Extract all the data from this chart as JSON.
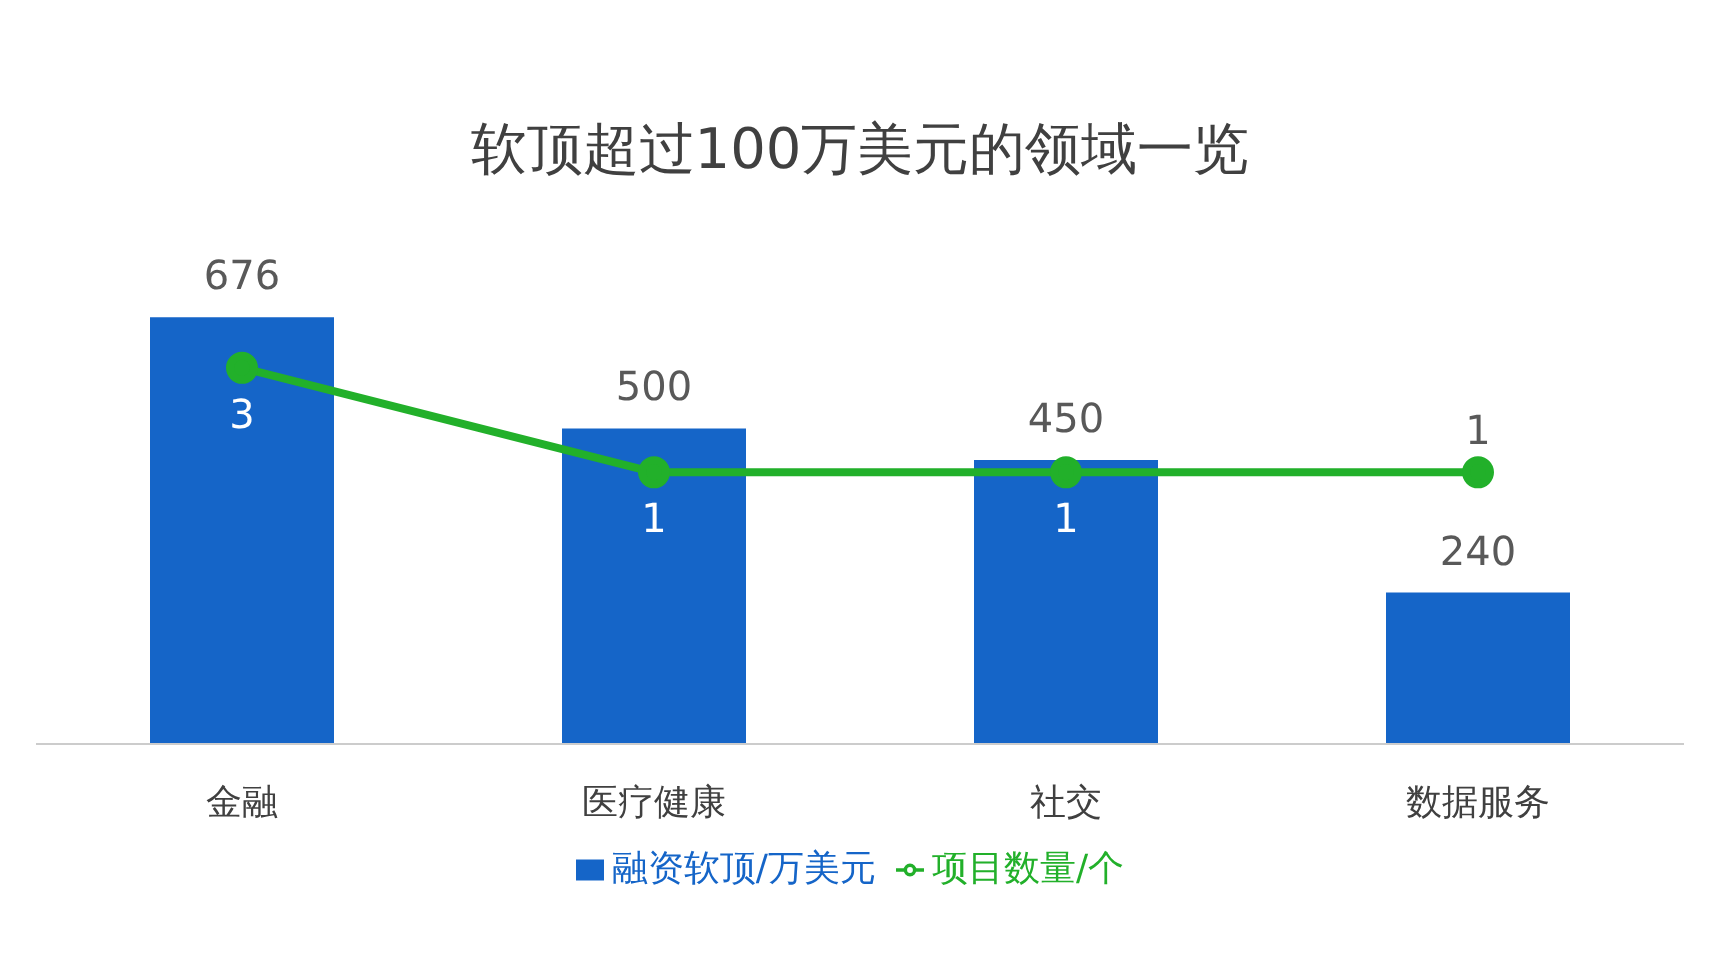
{
  "chart_data": {
    "type": "bar",
    "title": "软顶超过100万美元的领域一览",
    "categories": [
      "金融",
      "医疗健康",
      "社交",
      "数据服务"
    ],
    "series": [
      {
        "name": "融资软顶/万美元",
        "color": "#1565c8",
        "values": [
          676,
          500,
          450,
          240
        ]
      },
      {
        "name": "项目数量/个",
        "type": "line",
        "axis": "y2",
        "color": "#22b02a",
        "values": [
          3,
          1,
          1,
          1
        ]
      }
    ],
    "data_labels": true,
    "legend": "bottom",
    "marker": "circle"
  }
}
